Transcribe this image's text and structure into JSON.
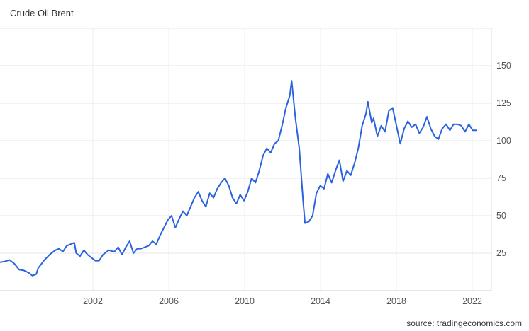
{
  "chart_data": {
    "type": "line",
    "title": "Crude Oil Brent",
    "source": "source: tradingeconomics.com",
    "line_color": "#2a62e0",
    "grid": true,
    "xlabel": "",
    "ylabel": "",
    "xlim": [
      1998.0,
      2023.0
    ],
    "ylim": [
      0,
      175
    ],
    "x_ticks": [
      {
        "value": 2002,
        "label": "2002"
      },
      {
        "value": 2006,
        "label": "2006"
      },
      {
        "value": 2010,
        "label": "2010"
      },
      {
        "value": 2014,
        "label": "2014"
      },
      {
        "value": 2018,
        "label": "2018"
      },
      {
        "value": 2022,
        "label": "2022"
      }
    ],
    "y_ticks": [
      {
        "value": 25,
        "label": "25"
      },
      {
        "value": 50,
        "label": "50"
      },
      {
        "value": 75,
        "label": "75"
      },
      {
        "value": 100,
        "label": "100"
      },
      {
        "value": 125,
        "label": "125"
      },
      {
        "value": 150,
        "label": "150"
      }
    ],
    "series": [
      {
        "values": [
          [
            1998.0,
            19
          ],
          [
            1998.25,
            19.5
          ],
          [
            1998.5,
            20.5
          ],
          [
            1998.75,
            18
          ],
          [
            1999.0,
            14
          ],
          [
            1999.25,
            13.5
          ],
          [
            1999.5,
            12
          ],
          [
            1999.7,
            10
          ],
          [
            1999.9,
            11
          ],
          [
            2000.0,
            15
          ],
          [
            2000.3,
            20
          ],
          [
            2000.6,
            24
          ],
          [
            2000.9,
            27
          ],
          [
            2001.1,
            28
          ],
          [
            2001.3,
            26
          ],
          [
            2001.5,
            30
          ],
          [
            2001.7,
            31
          ],
          [
            2001.9,
            32
          ],
          [
            2002.0,
            25
          ],
          [
            2002.2,
            23
          ],
          [
            2002.4,
            27
          ],
          [
            2002.6,
            24
          ],
          [
            2002.8,
            22
          ],
          [
            2003.0,
            20
          ],
          [
            2003.2,
            20
          ],
          [
            2003.4,
            24
          ],
          [
            2003.7,
            27
          ],
          [
            2004.0,
            26
          ],
          [
            2004.2,
            29
          ],
          [
            2004.4,
            24
          ],
          [
            2004.6,
            29
          ],
          [
            2004.8,
            33
          ],
          [
            2005.0,
            25
          ],
          [
            2005.2,
            28
          ],
          [
            2005.4,
            28
          ],
          [
            2005.6,
            29
          ],
          [
            2005.8,
            30
          ],
          [
            2006.0,
            33
          ],
          [
            2006.2,
            31
          ],
          [
            2006.4,
            37
          ],
          [
            2006.6,
            42
          ],
          [
            2006.8,
            47
          ],
          [
            2007.0,
            50
          ],
          [
            2007.2,
            42
          ],
          [
            2007.4,
            48
          ],
          [
            2007.6,
            53
          ],
          [
            2007.8,
            50
          ],
          [
            2008.0,
            56
          ],
          [
            2008.2,
            62
          ],
          [
            2008.4,
            66
          ],
          [
            2008.6,
            60
          ],
          [
            2008.8,
            56
          ],
          [
            2009.0,
            65
          ],
          [
            2009.2,
            62
          ],
          [
            2009.4,
            68
          ],
          [
            2009.6,
            72
          ],
          [
            2009.8,
            75
          ],
          [
            2010.0,
            70
          ],
          [
            2010.2,
            62
          ],
          [
            2010.4,
            58
          ],
          [
            2010.6,
            64
          ],
          [
            2010.8,
            60
          ],
          [
            2011.0,
            66
          ],
          [
            2011.2,
            75
          ],
          [
            2011.4,
            72
          ],
          [
            2011.6,
            80
          ],
          [
            2011.8,
            90
          ],
          [
            2012.0,
            95
          ],
          [
            2012.2,
            92
          ],
          [
            2012.4,
            98
          ],
          [
            2012.6,
            100
          ],
          [
            2012.8,
            110
          ],
          [
            2013.0,
            122
          ],
          [
            2013.2,
            130
          ],
          [
            2013.3,
            140
          ],
          [
            2013.5,
            115
          ],
          [
            2013.7,
            95
          ],
          [
            2013.9,
            60
          ],
          [
            2014.0,
            45
          ],
          [
            2014.2,
            46
          ],
          [
            2014.4,
            50
          ],
          [
            2014.6,
            65
          ],
          [
            2014.8,
            70
          ],
          [
            2015.0,
            68
          ],
          [
            2015.2,
            78
          ],
          [
            2015.4,
            72
          ],
          [
            2015.6,
            80
          ],
          [
            2015.8,
            87
          ],
          [
            2016.0,
            73
          ],
          [
            2016.2,
            80
          ],
          [
            2016.4,
            77
          ],
          [
            2016.6,
            85
          ],
          [
            2016.8,
            95
          ],
          [
            2017.0,
            110
          ],
          [
            2017.2,
            118
          ],
          [
            2017.3,
            126
          ],
          [
            2017.5,
            112
          ],
          [
            2017.6,
            115
          ],
          [
            2017.8,
            103
          ],
          [
            2018.0,
            110
          ],
          [
            2018.2,
            106
          ],
          [
            2018.4,
            120
          ],
          [
            2018.6,
            122
          ],
          [
            2018.8,
            110
          ],
          [
            2019.0,
            98
          ],
          [
            2019.2,
            108
          ],
          [
            2019.4,
            113
          ],
          [
            2019.6,
            109
          ],
          [
            2019.8,
            111
          ],
          [
            2020.0,
            105
          ],
          [
            2020.2,
            109
          ],
          [
            2020.4,
            116
          ],
          [
            2020.6,
            108
          ],
          [
            2020.8,
            103
          ],
          [
            2021.0,
            101
          ],
          [
            2021.2,
            108
          ],
          [
            2021.4,
            111
          ],
          [
            2021.6,
            107
          ],
          [
            2021.8,
            111
          ],
          [
            2022.0,
            111
          ],
          [
            2022.2,
            110
          ],
          [
            2022.4,
            106
          ],
          [
            2022.6,
            111
          ],
          [
            2022.8,
            107
          ],
          [
            2023.0,
            107
          ]
        ]
      }
    ]
  }
}
